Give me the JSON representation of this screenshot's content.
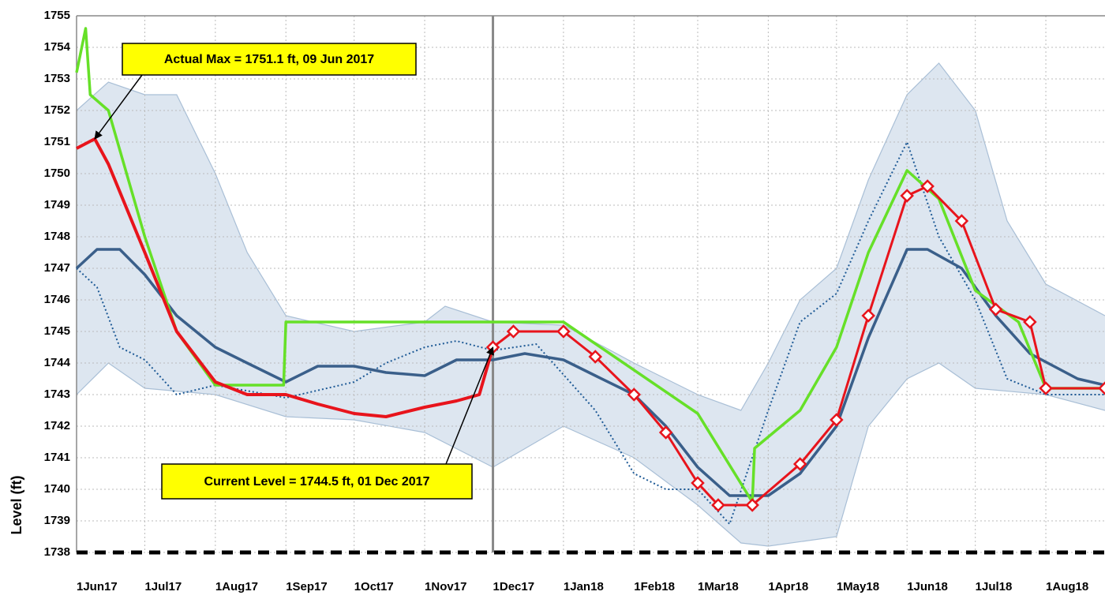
{
  "chart_data": {
    "type": "line",
    "y_label": "Level (ft)",
    "ylim": [
      1738,
      1755
    ],
    "yticks": [
      1738,
      1739,
      1740,
      1741,
      1742,
      1743,
      1744,
      1745,
      1746,
      1747,
      1748,
      1749,
      1750,
      1751,
      1752,
      1753,
      1754,
      1755
    ],
    "xlim": [
      "2017-06-01",
      "2018-08-27"
    ],
    "xticks": [
      {
        "value": "2017-06-01",
        "label": "1Jun17"
      },
      {
        "value": "2017-07-01",
        "label": "1Jul17"
      },
      {
        "value": "2017-08-01",
        "label": "1Aug17"
      },
      {
        "value": "2017-09-01",
        "label": "1Sep17"
      },
      {
        "value": "2017-10-01",
        "label": "1Oct17"
      },
      {
        "value": "2017-11-01",
        "label": "1Nov17"
      },
      {
        "value": "2017-12-01",
        "label": "1Dec17"
      },
      {
        "value": "2018-01-01",
        "label": "1Jan18"
      },
      {
        "value": "2018-02-01",
        "label": "1Feb18"
      },
      {
        "value": "2018-03-01",
        "label": "1Mar18"
      },
      {
        "value": "2018-04-01",
        "label": "1Apr18"
      },
      {
        "value": "2018-05-01",
        "label": "1May18"
      },
      {
        "value": "2018-06-01",
        "label": "1Jun18"
      },
      {
        "value": "2018-07-01",
        "label": "1Jul18"
      },
      {
        "value": "2018-08-01",
        "label": "1Aug18"
      }
    ],
    "grid": true,
    "current_date": "2017-12-01",
    "band": {
      "color": "#dde6f0",
      "edge_color": "#a9bfd6",
      "x_high": [
        "2017-06-01",
        "2017-06-15",
        "2017-07-01",
        "2017-07-15",
        "2017-08-01",
        "2017-08-15",
        "2017-09-01",
        "2017-10-01",
        "2017-11-01",
        "2017-11-10",
        "2017-12-01",
        "2018-01-01",
        "2018-02-01",
        "2018-03-01",
        "2018-03-20",
        "2018-04-01",
        "2018-04-15",
        "2018-05-01",
        "2018-05-15",
        "2018-06-01",
        "2018-06-15",
        "2018-07-01",
        "2018-07-15",
        "2018-08-01",
        "2018-08-27"
      ],
      "high": [
        1752,
        1752.9,
        1752.5,
        1752.5,
        1750,
        1747.5,
        1745.5,
        1745,
        1745.3,
        1745.8,
        1745.3,
        1745.2,
        1744,
        1743,
        1742.5,
        1744,
        1746,
        1747,
        1749.8,
        1752.5,
        1753.5,
        1752,
        1748.5,
        1746.5,
        1745.5
      ],
      "x_low": [
        "2017-06-01",
        "2017-06-15",
        "2017-07-01",
        "2017-08-01",
        "2017-09-01",
        "2017-10-01",
        "2017-11-01",
        "2017-12-01",
        "2018-01-01",
        "2018-02-01",
        "2018-03-01",
        "2018-03-20",
        "2018-04-01",
        "2018-05-01",
        "2018-05-15",
        "2018-06-01",
        "2018-06-15",
        "2018-07-01",
        "2018-08-01",
        "2018-08-27"
      ],
      "low": [
        1743,
        1744,
        1743.2,
        1743,
        1742.3,
        1742.2,
        1741.8,
        1740.7,
        1742,
        1741,
        1739.5,
        1738.3,
        1738.2,
        1738.5,
        1742,
        1743.5,
        1744,
        1743.2,
        1743,
        1742.5
      ]
    },
    "series": [
      {
        "color": "#1e5a96",
        "style": "dotted",
        "width": 2,
        "x": [
          "2017-06-01",
          "2017-06-10",
          "2017-06-20",
          "2017-07-01",
          "2017-07-15",
          "2017-08-01",
          "2017-09-01",
          "2017-10-01",
          "2017-10-15",
          "2017-11-01",
          "2017-11-15",
          "2017-12-01",
          "2017-12-20",
          "2018-01-15",
          "2018-02-01",
          "2018-02-15",
          "2018-03-01",
          "2018-03-15",
          "2018-04-01",
          "2018-04-15",
          "2018-05-01",
          "2018-05-15",
          "2018-06-01",
          "2018-06-15",
          "2018-07-01",
          "2018-07-15",
          "2018-08-01",
          "2018-08-27"
        ],
        "values": [
          1747,
          1746.4,
          1744.5,
          1744.1,
          1743,
          1743.3,
          1742.9,
          1743.4,
          1744,
          1744.5,
          1744.7,
          1744.4,
          1744.6,
          1742.5,
          1740.5,
          1740,
          1740,
          1738.9,
          1742.5,
          1745.3,
          1746.2,
          1748.5,
          1751,
          1748,
          1746,
          1743.5,
          1743,
          1743
        ]
      },
      {
        "color": "#3a5f8a",
        "style": "solid",
        "width": 3.5,
        "x": [
          "2017-06-01",
          "2017-06-10",
          "2017-06-20",
          "2017-07-01",
          "2017-07-15",
          "2017-08-01",
          "2017-08-15",
          "2017-09-01",
          "2017-09-15",
          "2017-10-01",
          "2017-10-15",
          "2017-11-01",
          "2017-11-15",
          "2017-12-01",
          "2017-12-15",
          "2018-01-01",
          "2018-01-15",
          "2018-02-01",
          "2018-02-15",
          "2018-03-01",
          "2018-03-15",
          "2018-04-01",
          "2018-04-15",
          "2018-05-01",
          "2018-05-15",
          "2018-06-01",
          "2018-06-10",
          "2018-06-25",
          "2018-07-10",
          "2018-07-25",
          "2018-08-15",
          "2018-08-27"
        ],
        "values": [
          1747,
          1747.6,
          1747.6,
          1746.8,
          1745.5,
          1744.5,
          1744,
          1743.4,
          1743.9,
          1743.9,
          1743.7,
          1743.6,
          1744.1,
          1744.1,
          1744.3,
          1744.1,
          1743.6,
          1743,
          1742,
          1740.7,
          1739.8,
          1739.8,
          1740.5,
          1742,
          1744.8,
          1747.6,
          1747.6,
          1747,
          1745.5,
          1744.3,
          1743.5,
          1743.3
        ]
      },
      {
        "color": "#66e028",
        "style": "solid",
        "width": 3.5,
        "x": [
          "2017-06-01",
          "2017-06-05",
          "2017-06-07",
          "2017-06-15",
          "2017-07-01",
          "2017-07-15",
          "2017-08-01",
          "2017-08-31",
          "2017-09-01",
          "2018-01-01",
          "2018-03-01",
          "2018-03-25",
          "2018-03-26",
          "2018-04-15",
          "2018-05-01",
          "2018-05-15",
          "2018-06-01",
          "2018-06-15",
          "2018-07-01",
          "2018-07-20",
          "2018-08-01",
          "2018-08-27"
        ],
        "values": [
          1753.2,
          1754.6,
          1752.5,
          1752,
          1748,
          1745,
          1743.3,
          1743.3,
          1745.3,
          1745.3,
          1742.4,
          1739.6,
          1741.3,
          1742.5,
          1744.5,
          1747.5,
          1750.1,
          1749.2,
          1746.3,
          1745.3,
          1743.2,
          1743.2
        ]
      },
      {
        "color": "#e8141c",
        "style": "solid",
        "width": 4,
        "x": [
          "2017-06-01",
          "2017-06-09",
          "2017-06-15",
          "2017-07-01",
          "2017-07-15",
          "2017-08-01",
          "2017-08-15",
          "2017-09-01",
          "2017-09-15",
          "2017-10-01",
          "2017-10-15",
          "2017-11-01",
          "2017-11-15",
          "2017-11-25",
          "2017-12-01"
        ],
        "values": [
          1750.8,
          1751.1,
          1750.3,
          1747.5,
          1745,
          1743.4,
          1743,
          1743,
          1742.7,
          1742.4,
          1742.3,
          1742.6,
          1742.8,
          1743,
          1744.5
        ]
      },
      {
        "color": "#e8141c",
        "style": "solid",
        "width": 3,
        "marker": "diamond",
        "x": [
          "2017-12-01",
          "2017-12-10",
          "2018-01-01",
          "2018-01-15",
          "2018-02-01",
          "2018-02-15",
          "2018-03-01",
          "2018-03-10",
          "2018-03-25",
          "2018-04-15",
          "2018-05-01",
          "2018-05-15",
          "2018-06-01",
          "2018-06-10",
          "2018-06-25",
          "2018-07-10",
          "2018-07-25",
          "2018-08-01",
          "2018-08-27"
        ],
        "values": [
          1744.5,
          1745,
          1745,
          1744.2,
          1743,
          1741.8,
          1740.2,
          1739.5,
          1739.5,
          1740.8,
          1742.2,
          1745.5,
          1749.3,
          1749.6,
          1748.5,
          1745.7,
          1745.3,
          1743.2,
          1743.2
        ]
      }
    ],
    "annotations": [
      {
        "text": "Actual Max = 1751.1 ft, 09 Jun 2017",
        "x": "2017-06-09",
        "y": 1751.1
      },
      {
        "text": "Current Level = 1744.5 ft, 01 Dec 2017",
        "x": "2017-12-01",
        "y": 1744.5
      }
    ]
  }
}
